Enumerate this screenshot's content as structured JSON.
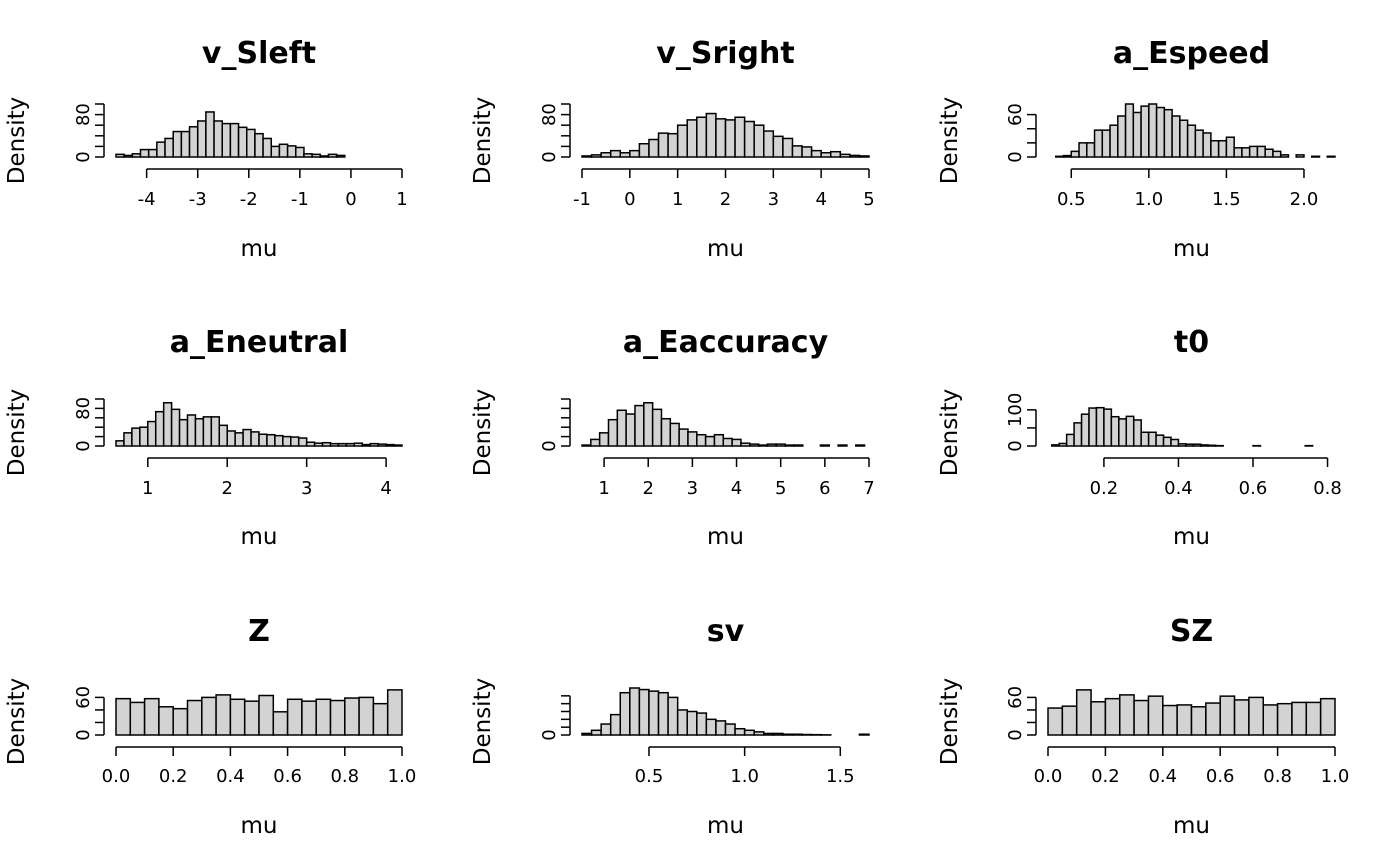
{
  "chart_data": [
    {
      "type": "bar",
      "title": "v_Sleft",
      "xlabel": "mu",
      "ylabel": "Density",
      "xlim": [
        -4.6,
        1.0
      ],
      "xticks": [
        "-4",
        "-3",
        "-2",
        "-1",
        "0",
        "1"
      ],
      "xtick_values": [
        -4,
        -3,
        -2,
        -1,
        0,
        1
      ],
      "ylim": [
        0,
        100
      ],
      "yticks": [
        "0",
        "80"
      ],
      "ytick_values": [
        0,
        80
      ],
      "ytick_minor": [
        20,
        40,
        60,
        100
      ],
      "bin_start": -4.6,
      "bin_width": 0.16,
      "values": [
        5,
        3,
        6,
        14,
        14,
        28,
        35,
        48,
        48,
        57,
        68,
        85,
        68,
        63,
        63,
        56,
        52,
        44,
        35,
        20,
        24,
        21,
        18,
        6,
        5,
        2,
        5,
        3
      ]
    },
    {
      "type": "bar",
      "title": "v_Sright",
      "xlabel": "mu",
      "ylabel": "Density",
      "xlim": [
        -1.0,
        5.0
      ],
      "xticks": [
        "-1",
        "0",
        "1",
        "2",
        "3",
        "4",
        "5"
      ],
      "xtick_values": [
        -1,
        0,
        1,
        2,
        3,
        4,
        5
      ],
      "ylim": [
        0,
        100
      ],
      "yticks": [
        "0",
        "80"
      ],
      "ytick_values": [
        0,
        80
      ],
      "ytick_minor": [
        20,
        40,
        60,
        100
      ],
      "bin_start": -1.0,
      "bin_width": 0.2,
      "values": [
        2,
        4,
        8,
        12,
        8,
        12,
        25,
        33,
        45,
        44,
        60,
        70,
        75,
        82,
        72,
        70,
        75,
        67,
        60,
        49,
        39,
        35,
        21,
        19,
        12,
        8,
        10,
        5,
        3,
        2
      ]
    },
    {
      "type": "bar",
      "title": "a_Espeed",
      "xlabel": "mu",
      "ylabel": "Density",
      "xlim": [
        0.35,
        2.2
      ],
      "xticks": [
        "0.5",
        "1.0",
        "1.5",
        "2.0"
      ],
      "xtick_values": [
        0.5,
        1.0,
        1.5,
        2.0
      ],
      "ylim": [
        0,
        75
      ],
      "yticks": [
        "0",
        "60"
      ],
      "ytick_values": [
        0,
        60
      ],
      "ytick_minor": [
        20,
        40
      ],
      "bin_start": 0.4,
      "bin_width": 0.05,
      "values": [
        1,
        2,
        8,
        20,
        20,
        38,
        38,
        45,
        58,
        75,
        63,
        72,
        75,
        70,
        67,
        58,
        52,
        45,
        38,
        34,
        23,
        23,
        28,
        13,
        13,
        15,
        15,
        11,
        8,
        3,
        0,
        3,
        0,
        1,
        0,
        1
      ]
    },
    {
      "type": "bar",
      "title": "a_Eneutral",
      "xlabel": "mu",
      "ylabel": "Density",
      "xlim": [
        0.6,
        4.2
      ],
      "xticks": [
        "1",
        "2",
        "3",
        "4"
      ],
      "xtick_values": [
        1,
        2,
        3,
        4
      ],
      "ylim": [
        0,
        100
      ],
      "yticks": [
        "0",
        "80"
      ],
      "ytick_values": [
        0,
        80
      ],
      "ytick_minor": [
        20,
        40,
        60,
        100
      ],
      "bin_start": 0.6,
      "bin_width": 0.1,
      "values": [
        11,
        28,
        38,
        40,
        52,
        73,
        92,
        78,
        56,
        66,
        58,
        62,
        62,
        44,
        32,
        28,
        35,
        30,
        25,
        24,
        22,
        20,
        19,
        17,
        8,
        6,
        7,
        5,
        5,
        5,
        6,
        3,
        5,
        4,
        3,
        2
      ]
    },
    {
      "type": "bar",
      "title": "a_Eaccuracy",
      "xlabel": "mu",
      "ylabel": "Density",
      "xlim": [
        0.5,
        7.0
      ],
      "xticks": [
        "1",
        "2",
        "3",
        "4",
        "5",
        "6",
        "7"
      ],
      "xtick_values": [
        1,
        2,
        3,
        4,
        5,
        6,
        7
      ],
      "ylim": [
        0,
        0.5
      ],
      "yticks": [
        "0"
      ],
      "ytick_values": [
        0
      ],
      "ytick_minor": [
        0.1,
        0.2,
        0.3,
        0.4,
        0.5
      ],
      "bin_start": 0.5,
      "bin_width": 0.2,
      "values": [
        0.01,
        0.07,
        0.14,
        0.28,
        0.38,
        0.34,
        0.43,
        0.46,
        0.39,
        0.29,
        0.24,
        0.18,
        0.15,
        0.12,
        0.1,
        0.12,
        0.08,
        0.07,
        0.03,
        0.02,
        0.01,
        0.02,
        0.02,
        0.01,
        0.01,
        0.0,
        0.0,
        0.01,
        0.0,
        0.01,
        0.0,
        0.01
      ]
    },
    {
      "type": "bar",
      "title": "t0",
      "xlabel": "mu",
      "ylabel": "Density",
      "xlim": [
        0.05,
        0.82
      ],
      "xticks": [
        "0.2",
        "0.4",
        "0.6",
        "0.8"
      ],
      "xtick_values": [
        0.2,
        0.4,
        0.6,
        0.8
      ],
      "ylim": [
        0,
        130
      ],
      "yticks": [
        "0",
        "100"
      ],
      "ytick_values": [
        0,
        100
      ],
      "ytick_minor": [
        50
      ],
      "bin_start": 0.06,
      "bin_width": 0.02,
      "values": [
        3,
        7,
        32,
        64,
        88,
        105,
        106,
        102,
        81,
        75,
        82,
        72,
        38,
        38,
        30,
        24,
        18,
        6,
        5,
        5,
        3,
        2,
        1,
        0,
        0,
        0,
        0,
        1,
        0,
        0,
        0,
        0,
        0,
        0,
        1,
        0,
        0,
        0
      ]
    },
    {
      "type": "bar",
      "title": "Z",
      "xlabel": "mu",
      "ylabel": "Density",
      "xlim": [
        0.0,
        1.0
      ],
      "xticks": [
        "0.0",
        "0.2",
        "0.4",
        "0.6",
        "0.8",
        "1.0"
      ],
      "xtick_values": [
        0.0,
        0.2,
        0.4,
        0.6,
        0.8,
        1.0
      ],
      "ylim": [
        0,
        75
      ],
      "yticks": [
        "0",
        "60"
      ],
      "ytick_values": [
        0,
        60
      ],
      "ytick_minor": [
        20,
        40
      ],
      "bin_start": 0.0,
      "bin_width": 0.05,
      "values": [
        58,
        52,
        58,
        45,
        42,
        55,
        60,
        64,
        57,
        54,
        63,
        37,
        57,
        54,
        57,
        55,
        59,
        60,
        50,
        72
      ]
    },
    {
      "type": "bar",
      "title": "sv",
      "xlabel": "mu",
      "ylabel": "Density",
      "xlim": [
        0.15,
        1.65
      ],
      "xticks": [
        "0.5",
        "1.0",
        "1.5"
      ],
      "xtick_values": [
        0.5,
        1.0,
        1.5
      ],
      "ylim": [
        0,
        3.0
      ],
      "yticks": [
        "0"
      ],
      "ytick_values": [
        0
      ],
      "ytick_minor": [
        0.5,
        1.0,
        1.5,
        2.0,
        2.5
      ],
      "bin_start": 0.15,
      "bin_width": 0.05,
      "values": [
        0.1,
        0.3,
        0.7,
        1.3,
        2.7,
        3.0,
        2.9,
        2.8,
        2.7,
        2.4,
        1.6,
        1.5,
        1.4,
        1.0,
        0.9,
        0.7,
        0.4,
        0.3,
        0.2,
        0.1,
        0.1,
        0.05,
        0.05,
        0.03,
        0.02,
        0.01,
        0.0,
        0.0,
        0.0,
        0.05
      ]
    },
    {
      "type": "bar",
      "title": "SZ",
      "xlabel": "mu",
      "ylabel": "Density",
      "xlim": [
        0.0,
        1.0
      ],
      "xticks": [
        "0.0",
        "0.2",
        "0.4",
        "0.6",
        "0.8",
        "1.0"
      ],
      "xtick_values": [
        0.0,
        0.2,
        0.4,
        0.6,
        0.8,
        1.0
      ],
      "ylim": [
        0,
        75
      ],
      "yticks": [
        "0",
        "60"
      ],
      "ytick_values": [
        0,
        60
      ],
      "ytick_minor": [
        20,
        40
      ],
      "bin_start": 0.0,
      "bin_width": 0.05,
      "values": [
        43,
        46,
        72,
        53,
        58,
        64,
        55,
        62,
        47,
        48,
        45,
        51,
        62,
        56,
        60,
        48,
        50,
        52,
        52,
        58
      ]
    }
  ]
}
